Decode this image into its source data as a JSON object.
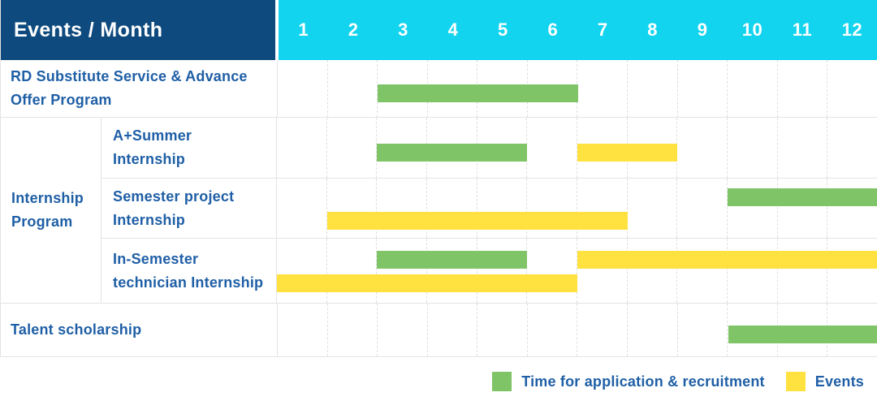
{
  "header": {
    "title": "Events / Month",
    "months": [
      "1",
      "2",
      "3",
      "4",
      "5",
      "6",
      "7",
      "8",
      "9",
      "10",
      "11",
      "12"
    ]
  },
  "colors": {
    "header_bg": "#0e4a7e",
    "months_bg": "#12d4ef",
    "header_text": "#ffffff",
    "label_text": "#1f5fa6",
    "grid_line": "#e4e4e4",
    "grid_dash": "#dfdfdf",
    "bar_green": "#7fc466",
    "bar_yellow": "#ffe23f"
  },
  "legend": {
    "items": [
      {
        "label": "Time for application & recruitment",
        "color": "#7fc466"
      },
      {
        "label": "Events",
        "color": "#ffe23f"
      }
    ]
  },
  "chart_data": {
    "type": "bar",
    "subtype": "gantt-timeline",
    "title": "Events / Month",
    "xlabel": "Month",
    "x_axis": {
      "ticks": [
        1,
        2,
        3,
        4,
        5,
        6,
        7,
        8,
        9,
        10,
        11,
        12
      ],
      "range": [
        1,
        12
      ]
    },
    "grid": true,
    "legend_position": "bottom-right",
    "series": [
      {
        "name": "Time for application & recruitment",
        "color": "#7fc466"
      },
      {
        "name": "Events",
        "color": "#ffe23f"
      }
    ],
    "rows": [
      {
        "group": "",
        "label": "RD Substitute Service & Advance Offer Program",
        "bars": [
          {
            "series": "Time for application & recruitment",
            "start_month": 3,
            "end_month": 6,
            "lane": "single"
          }
        ]
      },
      {
        "group": "Internship Program",
        "label": "A+Summer Internship",
        "bars": [
          {
            "series": "Time for application & recruitment",
            "start_month": 3,
            "end_month": 5,
            "lane": "single"
          },
          {
            "series": "Events",
            "start_month": 7,
            "end_month": 8,
            "lane": "single"
          }
        ]
      },
      {
        "group": "Internship Program",
        "label": "Semester project Internship",
        "bars": [
          {
            "series": "Time for application & recruitment",
            "start_month": 10,
            "end_month": 12,
            "lane": "top"
          },
          {
            "series": "Events",
            "start_month": 2,
            "end_month": 7,
            "lane": "bottom"
          }
        ]
      },
      {
        "group": "Internship Program",
        "label": "In-Semester technician Internship",
        "bars": [
          {
            "series": "Time for application & recruitment",
            "start_month": 3,
            "end_month": 5,
            "lane": "top"
          },
          {
            "series": "Events",
            "start_month": 7,
            "end_month": 12,
            "lane": "top"
          },
          {
            "series": "Events",
            "start_month": 1,
            "end_month": 6,
            "lane": "bottom"
          }
        ]
      },
      {
        "group": "",
        "label": "Talent scholarship",
        "bars": [
          {
            "series": "Time for application & recruitment",
            "start_month": 10,
            "end_month": 12,
            "lane": "single"
          }
        ]
      }
    ]
  }
}
